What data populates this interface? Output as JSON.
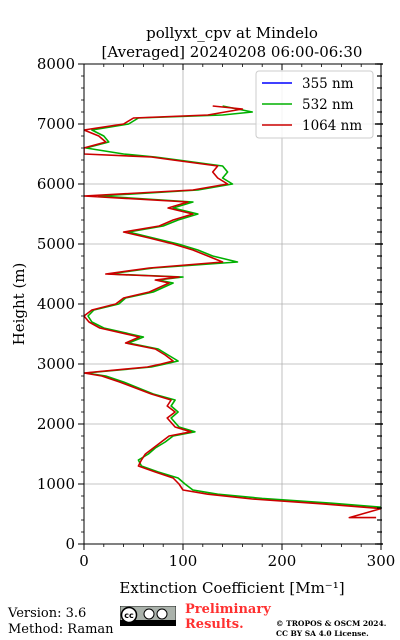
{
  "chart_data": {
    "type": "line",
    "title": "pollyxt_cpv at Mindelo",
    "subtitle": "[Averaged] 20240208 06:00-06:30",
    "xlabel": "Extinction Coefficient [Mm⁻¹]",
    "ylabel": "Height (m)",
    "xlim": [
      0,
      300
    ],
    "ylim": [
      0,
      8000
    ],
    "x_ticks": [
      "0",
      "100",
      "200",
      "300"
    ],
    "y_ticks": [
      "0",
      "1000",
      "2000",
      "3000",
      "4000",
      "5000",
      "6000",
      "7000",
      "8000"
    ],
    "grid": true,
    "legend_position": "top-right",
    "series": [
      {
        "name": "355 nm",
        "color": "#0000ff",
        "points": []
      },
      {
        "name": "532 nm",
        "color": "#00b000",
        "points": [
          [
            310,
            600
          ],
          [
            250,
            680
          ],
          [
            180,
            760
          ],
          [
            135,
            830
          ],
          [
            110,
            900
          ],
          [
            102,
            1000
          ],
          [
            95,
            1100
          ],
          [
            75,
            1200
          ],
          [
            58,
            1300
          ],
          [
            55,
            1400
          ],
          [
            65,
            1500
          ],
          [
            72,
            1600
          ],
          [
            82,
            1700
          ],
          [
            90,
            1800
          ],
          [
            112,
            1870
          ],
          [
            96,
            1950
          ],
          [
            88,
            2100
          ],
          [
            95,
            2200
          ],
          [
            88,
            2300
          ],
          [
            92,
            2400
          ],
          [
            70,
            2500
          ],
          [
            55,
            2600
          ],
          [
            40,
            2700
          ],
          [
            22,
            2800
          ],
          [
            2,
            2850
          ],
          [
            68,
            2950
          ],
          [
            82,
            3000
          ],
          [
            95,
            3050
          ],
          [
            85,
            3150
          ],
          [
            75,
            3250
          ],
          [
            45,
            3350
          ],
          [
            60,
            3450
          ],
          [
            20,
            3600
          ],
          [
            8,
            3700
          ],
          [
            4,
            3800
          ],
          [
            10,
            3900
          ],
          [
            35,
            4000
          ],
          [
            42,
            4100
          ],
          [
            70,
            4200
          ],
          [
            90,
            4350
          ],
          [
            75,
            4400
          ],
          [
            100,
            4450
          ],
          [
            25,
            4500
          ],
          [
            70,
            4600
          ],
          [
            155,
            4700
          ],
          [
            130,
            4800
          ],
          [
            115,
            4900
          ],
          [
            95,
            5000
          ],
          [
            70,
            5100
          ],
          [
            45,
            5200
          ],
          [
            80,
            5300
          ],
          [
            95,
            5400
          ],
          [
            115,
            5500
          ],
          [
            90,
            5600
          ],
          [
            110,
            5700
          ],
          [
            15,
            5800
          ],
          [
            115,
            5900
          ],
          [
            150,
            6000
          ],
          [
            140,
            6100
          ],
          [
            145,
            6200
          ],
          [
            140,
            6300
          ],
          [
            95,
            6400
          ],
          [
            72,
            6450
          ],
          [
            40,
            6500
          ],
          [
            2,
            6600
          ],
          [
            25,
            6700
          ],
          [
            20,
            6800
          ],
          [
            8,
            6900
          ],
          [
            45,
            7000
          ],
          [
            55,
            7100
          ],
          [
            140,
            7150
          ],
          [
            170,
            7200
          ],
          [
            140,
            7300
          ]
        ]
      },
      {
        "name": "1064 nm",
        "color": "#cc0000",
        "points": [
          [
            295,
            440
          ],
          [
            268,
            440
          ],
          [
            300,
            590
          ],
          [
            240,
            670
          ],
          [
            170,
            750
          ],
          [
            125,
            830
          ],
          [
            100,
            900
          ],
          [
            96,
            1000
          ],
          [
            90,
            1100
          ],
          [
            72,
            1200
          ],
          [
            55,
            1300
          ],
          [
            58,
            1400
          ],
          [
            62,
            1500
          ],
          [
            70,
            1600
          ],
          [
            78,
            1700
          ],
          [
            86,
            1800
          ],
          [
            108,
            1870
          ],
          [
            92,
            1950
          ],
          [
            84,
            2100
          ],
          [
            92,
            2200
          ],
          [
            84,
            2300
          ],
          [
            88,
            2400
          ],
          [
            68,
            2500
          ],
          [
            52,
            2600
          ],
          [
            36,
            2700
          ],
          [
            18,
            2800
          ],
          [
            0,
            2850
          ],
          [
            64,
            2950
          ],
          [
            78,
            3000
          ],
          [
            90,
            3050
          ],
          [
            82,
            3150
          ],
          [
            72,
            3250
          ],
          [
            42,
            3350
          ],
          [
            56,
            3450
          ],
          [
            16,
            3600
          ],
          [
            5,
            3700
          ],
          [
            0,
            3800
          ],
          [
            8,
            3900
          ],
          [
            32,
            4000
          ],
          [
            40,
            4100
          ],
          [
            66,
            4200
          ],
          [
            86,
            4350
          ],
          [
            72,
            4400
          ],
          [
            96,
            4450
          ],
          [
            22,
            4500
          ],
          [
            66,
            4600
          ],
          [
            140,
            4700
          ],
          [
            125,
            4800
          ],
          [
            110,
            4900
          ],
          [
            90,
            5000
          ],
          [
            66,
            5100
          ],
          [
            40,
            5200
          ],
          [
            76,
            5300
          ],
          [
            90,
            5400
          ],
          [
            110,
            5500
          ],
          [
            85,
            5600
          ],
          [
            105,
            5700
          ],
          [
            0,
            5800
          ],
          [
            110,
            5900
          ],
          [
            145,
            6000
          ],
          [
            135,
            6100
          ],
          [
            130,
            6200
          ],
          [
            135,
            6300
          ],
          [
            90,
            6400
          ],
          [
            68,
            6450
          ],
          [
            0,
            6500
          ],
          [
            0,
            6600
          ],
          [
            22,
            6700
          ],
          [
            15,
            6800
          ],
          [
            0,
            6900
          ],
          [
            40,
            7000
          ],
          [
            50,
            7100
          ],
          [
            125,
            7150
          ],
          [
            160,
            7250
          ],
          [
            130,
            7300
          ]
        ]
      }
    ]
  },
  "footer": {
    "version": "Version: 3.6",
    "method": "Method: Raman",
    "preliminary_line1": "Preliminary",
    "preliminary_line2": "Results.",
    "copyright_line1": "© TROPOS & OSCM 2024.",
    "copyright_line2": "CC BY SA 4.0 License."
  }
}
